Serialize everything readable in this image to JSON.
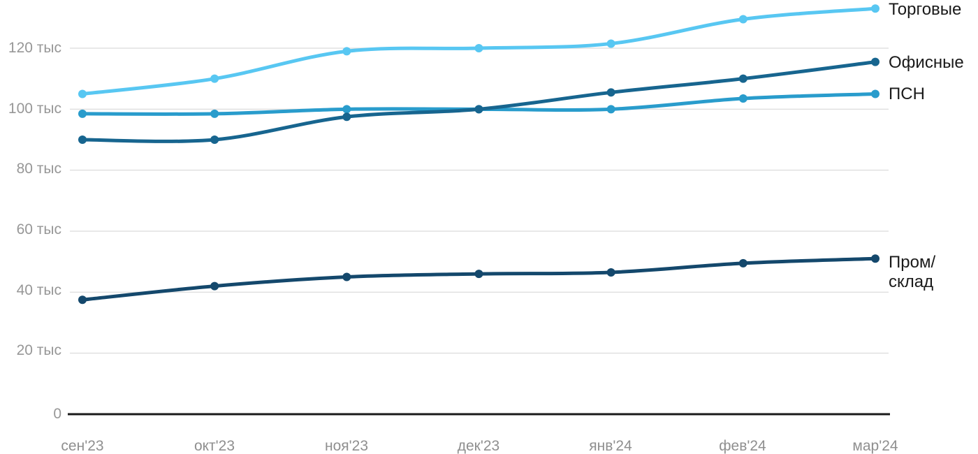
{
  "chart_data": {
    "type": "line",
    "title": "",
    "xlabel": "",
    "ylabel": "",
    "x_categories": [
      "сен'23",
      "окт'23",
      "ноя'23",
      "дек'23",
      "янв'24",
      "фев'24",
      "мар'24"
    ],
    "y_tick_labels_top_to_bottom": [
      "120 тыс",
      "100 тыс",
      "80 тыс",
      "60 тыс",
      "40 тыс",
      "20 тыс",
      "0"
    ],
    "y_tick_values": [
      120,
      100,
      80,
      60,
      40,
      20,
      0
    ],
    "y_unit": "тыс",
    "ylim": [
      0,
      135
    ],
    "grid": "horizontal-only",
    "legend_position": "right-of-line-ends",
    "series": [
      {
        "name": "Торговые",
        "color": "#58C7F2",
        "values": [
          105,
          110,
          119,
          120,
          121.5,
          129.5,
          133
        ]
      },
      {
        "name": "Офисные",
        "color": "#17658F",
        "values": [
          90,
          90,
          97.5,
          100,
          105.5,
          110,
          115.5
        ]
      },
      {
        "name": "ПСН",
        "color": "#299CCC",
        "values": [
          98.5,
          98.5,
          100,
          100,
          100,
          103.5,
          105
        ]
      },
      {
        "name": "Пром/склад",
        "color": "#14486C",
        "values": [
          37.5,
          42,
          45,
          46,
          46.5,
          49.5,
          51
        ]
      }
    ],
    "colors": {
      "axis_line": "#1a1a1a",
      "gridline": "#e0e0e0",
      "tick_label": "#979797",
      "legend_text": "#1a1a1a",
      "background": "#ffffff"
    }
  }
}
